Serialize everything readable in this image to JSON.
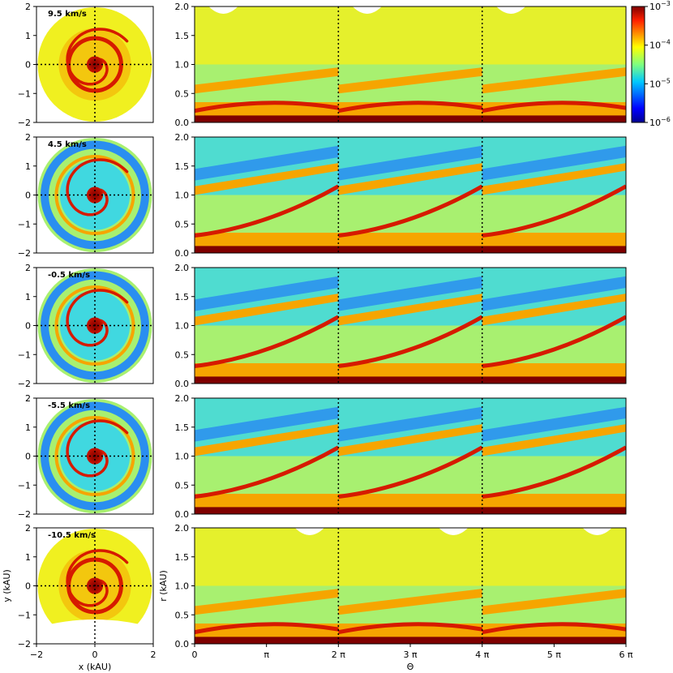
{
  "figure": {
    "colorbar": {
      "scale": "log",
      "range": [
        1e-06,
        0.001
      ],
      "ticks": [
        {
          "base": "10",
          "exp": "−3"
        },
        {
          "base": "10",
          "exp": "−4"
        },
        {
          "base": "10",
          "exp": "−5"
        },
        {
          "base": "10",
          "exp": "−6"
        }
      ],
      "colormap": "jet"
    },
    "colors": {
      "dark_red": "#7f0000",
      "red": "#d61a00",
      "orange": "#f6a500",
      "yellow": "#f0f020",
      "light_green": "#a8f070",
      "cyan": "#40d8e0",
      "blue": "#2a8ef0",
      "dark_blue": "#00008f"
    }
  },
  "chart_data": [
    {
      "type": "heatmap",
      "panel": "face-on maps (x–y)",
      "xlabel": "x (kAU)",
      "ylabel": "y (kAU)",
      "xlim": [
        -2,
        2
      ],
      "ylim": [
        -2,
        2
      ],
      "xticks": [
        "−2",
        "0",
        "2"
      ],
      "yticks": [
        "−2",
        "−1",
        "0",
        "1",
        "2"
      ],
      "rows": [
        {
          "velocity_label": "9.5 km/s"
        },
        {
          "velocity_label": "4.5 km/s"
        },
        {
          "velocity_label": "-0.5 km/s"
        },
        {
          "velocity_label": "-5.5 km/s"
        },
        {
          "velocity_label": "-10.5 km/s"
        }
      ]
    },
    {
      "type": "heatmap",
      "panel": "polar unwrapped maps (Θ–r)",
      "xlabel": "Θ",
      "ylabel": "r (kAU)",
      "xlim_pi": [
        0,
        6
      ],
      "ylim": [
        0,
        2
      ],
      "xticks": [
        "0",
        "π",
        "2 π",
        "3 π",
        "4 π",
        "5 π",
        "6 π"
      ],
      "yticks": [
        "0.0",
        "0.5",
        "1.0",
        "1.5",
        "2.0"
      ],
      "dotted_lines_at_pi": [
        2,
        4
      ]
    }
  ]
}
